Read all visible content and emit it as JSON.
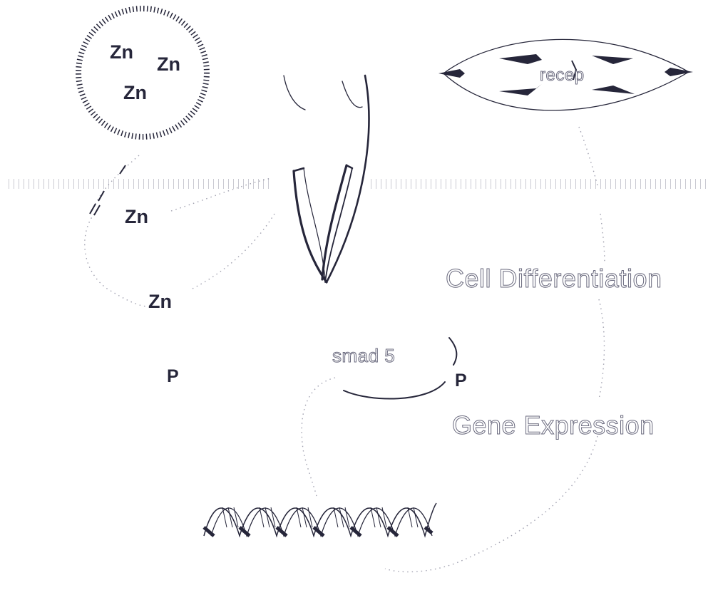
{
  "labels": {
    "zn_vesicle_1": "Zn",
    "zn_vesicle_2": "Zn",
    "zn_vesicle_3": "Zn",
    "zn_membrane": "Zn",
    "zn_cytoplasm": "Zn",
    "phosphate_left": "P",
    "phosphate_right": "P",
    "cell_differentiation": "Cell Differentiation",
    "gene_expression": "Gene Expression",
    "receptor_faint": "recep",
    "smad_faint": "smad 5"
  },
  "colors": {
    "ink": "#26263a",
    "faint_ink": "#6a6a7e",
    "background": "#ffffff"
  }
}
